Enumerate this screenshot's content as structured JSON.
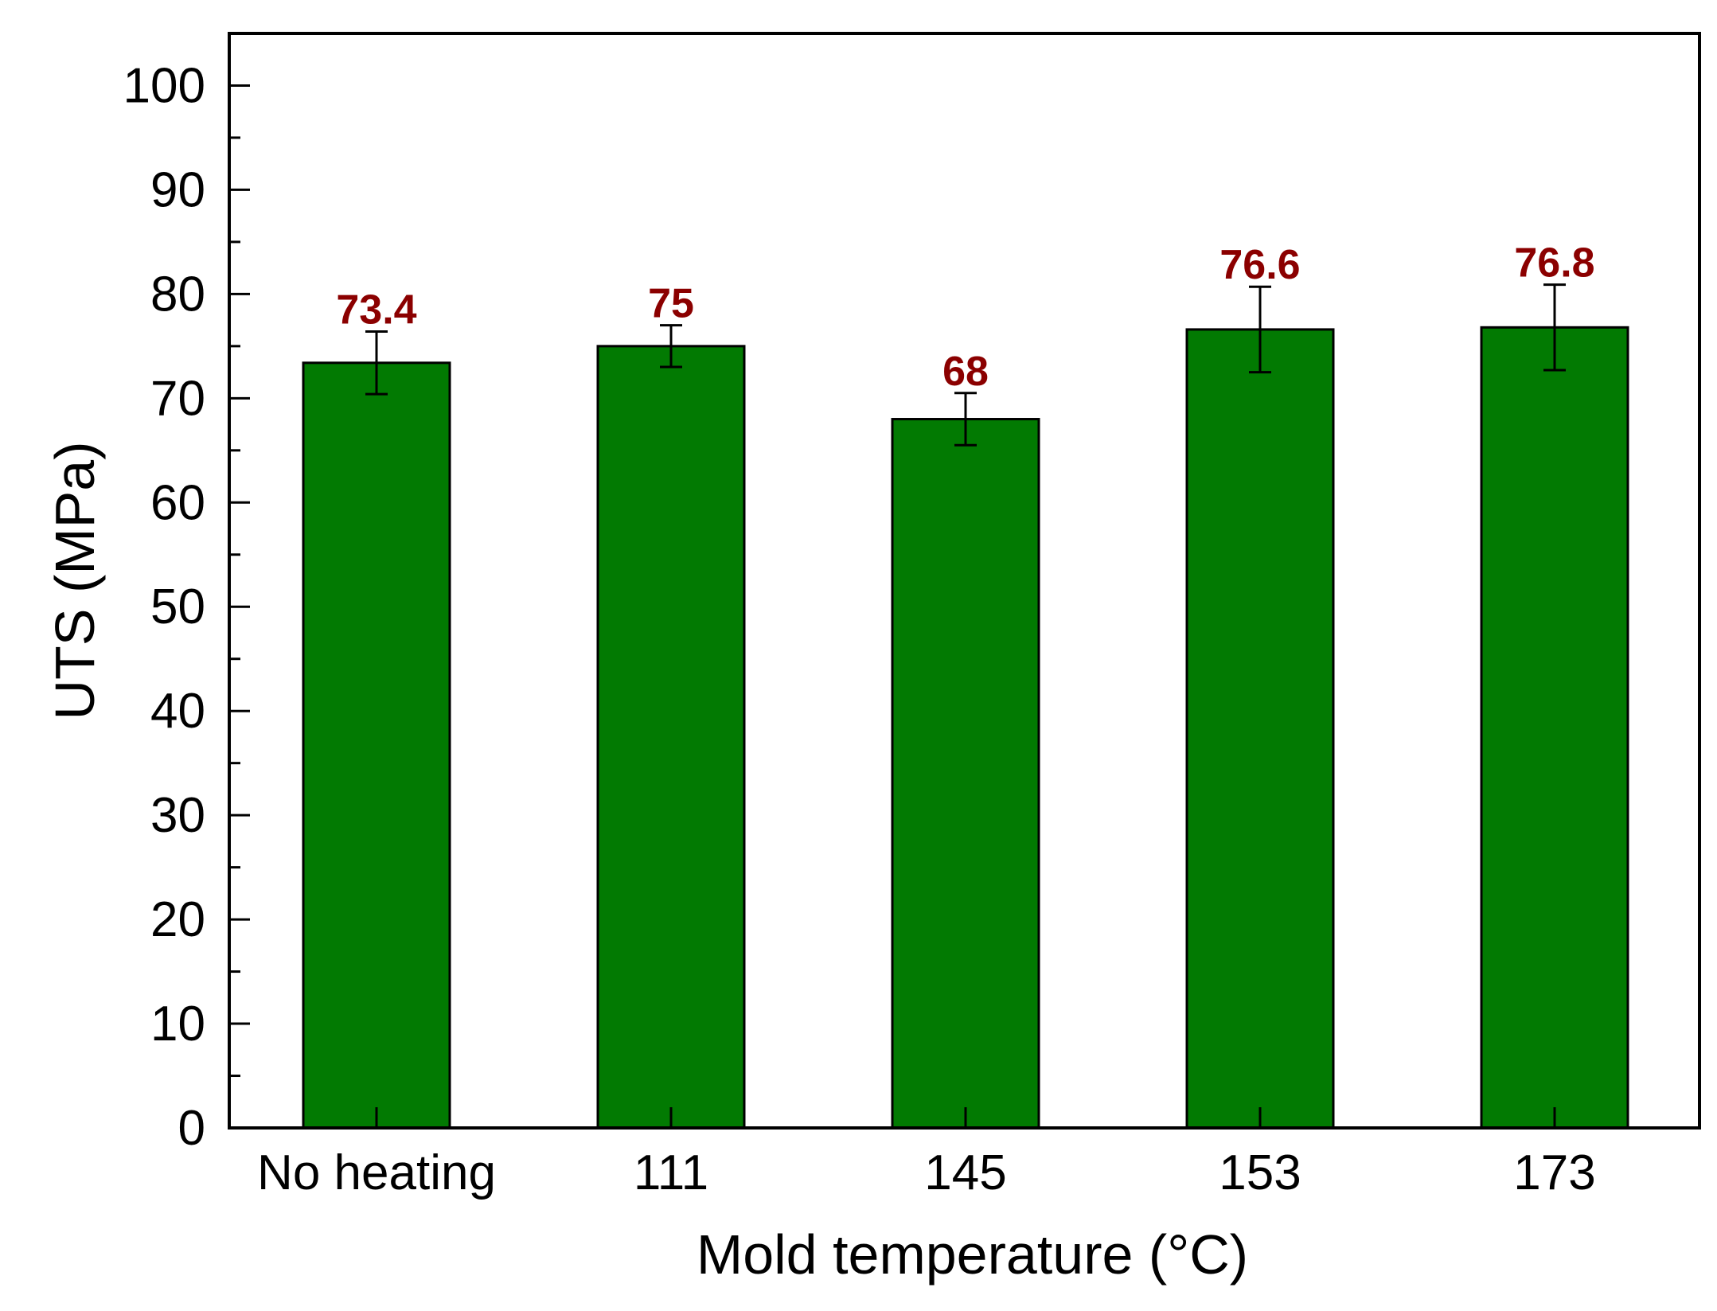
{
  "chart_data": {
    "type": "bar",
    "title": "",
    "xlabel": "Mold temperature (°C)",
    "ylabel": "UTS (MPa)",
    "categories": [
      "No heating",
      "111",
      "145",
      "153",
      "173"
    ],
    "values": [
      73.4,
      75,
      68,
      76.6,
      76.8
    ],
    "error": [
      3.0,
      2.0,
      2.5,
      4.1,
      4.1
    ],
    "data_labels": [
      "73.4",
      "75",
      "68",
      "76.6",
      "76.8"
    ],
    "ylim": [
      0,
      105
    ],
    "yticks": [
      0,
      10,
      20,
      30,
      40,
      50,
      60,
      70,
      80,
      90,
      100
    ],
    "ytick_labels": [
      "0",
      "10",
      "20",
      "30",
      "40",
      "50",
      "60",
      "70",
      "80",
      "90",
      "100"
    ],
    "grid": false,
    "legend": "none"
  },
  "colors": {
    "bar_fill": "#027a02",
    "bar_edge": "#000000",
    "data_label": "#8b0000",
    "axis": "#000000"
  }
}
